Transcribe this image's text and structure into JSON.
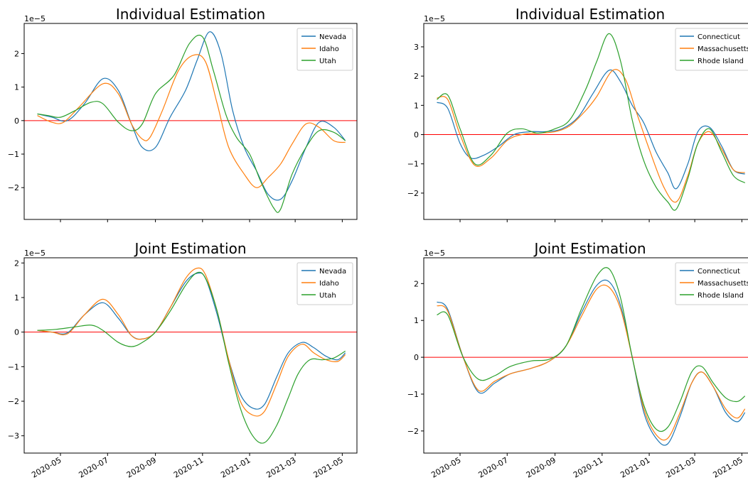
{
  "chart_data": [
    {
      "type": "line",
      "title": "Individual Estimation",
      "offset_text": "1e−5",
      "x_ticks": [
        "2020-05",
        "2020-07",
        "2020-09",
        "2020-11",
        "2021-01",
        "2021-03",
        "2021-05"
      ],
      "y_ticks": [
        "−2",
        "−1",
        "0",
        "1",
        "2"
      ],
      "ylim": [
        -2.95,
        2.9
      ],
      "xlim": [
        "2020-03-15",
        "2021-05-20"
      ],
      "show_xtick_labels": false,
      "reference_line": {
        "y": 0,
        "color": "#ff0000"
      },
      "legend": {
        "placement": "top-right"
      },
      "series": [
        {
          "name": "Nevada",
          "color": "#1f77b4",
          "x": [
            "2020-04-01",
            "2020-04-20",
            "2020-05-10",
            "2020-06-01",
            "2020-06-25",
            "2020-07-15",
            "2020-08-01",
            "2020-08-15",
            "2020-09-01",
            "2020-09-20",
            "2020-10-10",
            "2020-10-25",
            "2020-11-10",
            "2020-11-25",
            "2020-12-10",
            "2020-12-25",
            "2021-01-10",
            "2021-01-25",
            "2021-02-10",
            "2021-02-25",
            "2021-03-15",
            "2021-04-01",
            "2021-04-20",
            "2021-05-05"
          ],
          "values": [
            0.2,
            0.1,
            0.0,
            0.5,
            1.25,
            0.9,
            -0.1,
            -0.8,
            -0.8,
            0.1,
            0.9,
            1.8,
            2.65,
            2.0,
            0.3,
            -0.8,
            -1.5,
            -2.2,
            -2.35,
            -1.8,
            -0.8,
            -0.05,
            -0.2,
            -0.6
          ]
        },
        {
          "name": "Idaho",
          "color": "#ff7f0e",
          "x": [
            "2020-04-01",
            "2020-04-20",
            "2020-05-05",
            "2020-05-25",
            "2020-06-25",
            "2020-07-15",
            "2020-08-01",
            "2020-08-15",
            "2020-08-25",
            "2020-09-10",
            "2020-10-01",
            "2020-10-20",
            "2020-11-05",
            "2020-11-20",
            "2020-12-05",
            "2020-12-25",
            "2021-01-10",
            "2021-01-25",
            "2021-02-10",
            "2021-02-25",
            "2021-03-15",
            "2021-04-01",
            "2021-04-20",
            "2021-05-05"
          ],
          "values": [
            0.15,
            -0.05,
            -0.05,
            0.4,
            1.1,
            0.8,
            -0.1,
            -0.55,
            -0.5,
            0.3,
            1.5,
            1.95,
            1.75,
            0.5,
            -0.8,
            -1.6,
            -2.0,
            -1.7,
            -1.3,
            -0.7,
            -0.1,
            -0.2,
            -0.6,
            -0.65
          ]
        },
        {
          "name": "Utah",
          "color": "#2ca02c",
          "x": [
            "2020-04-01",
            "2020-04-15",
            "2020-05-01",
            "2020-05-20",
            "2020-06-10",
            "2020-06-25",
            "2020-07-15",
            "2020-08-01",
            "2020-08-15",
            "2020-09-01",
            "2020-09-25",
            "2020-10-15",
            "2020-11-01",
            "2020-11-15",
            "2020-12-01",
            "2020-12-15",
            "2021-01-01",
            "2021-01-15",
            "2021-02-01",
            "2021-02-10",
            "2021-02-25",
            "2021-03-15",
            "2021-04-01",
            "2021-04-20",
            "2021-05-05"
          ],
          "values": [
            0.2,
            0.15,
            0.1,
            0.3,
            0.55,
            0.5,
            -0.05,
            -0.3,
            -0.1,
            0.8,
            1.35,
            2.3,
            2.5,
            1.5,
            0.2,
            -0.5,
            -1.0,
            -1.8,
            -2.6,
            -2.65,
            -1.6,
            -0.8,
            -0.3,
            -0.35,
            -0.6
          ]
        }
      ]
    },
    {
      "type": "line",
      "title": "Individual Estimation",
      "offset_text": "1e−5",
      "x_ticks": [
        "2020-05",
        "2020-07",
        "2020-09",
        "2020-11",
        "2021-01",
        "2021-03",
        "2021-05"
      ],
      "y_ticks": [
        "−2",
        "−1",
        "0",
        "1",
        "2",
        "3"
      ],
      "ylim": [
        -2.9,
        3.8
      ],
      "xlim": [
        "2020-03-15",
        "2021-05-20"
      ],
      "show_xtick_labels": false,
      "reference_line": {
        "y": 0,
        "color": "#ff0000"
      },
      "legend": {
        "placement": "top-right"
      },
      "series": [
        {
          "name": "Connecticut",
          "color": "#1f77b4",
          "x": [
            "2020-04-01",
            "2020-04-15",
            "2020-05-01",
            "2020-05-15",
            "2020-06-01",
            "2020-06-20",
            "2020-07-10",
            "2020-08-01",
            "2020-08-20",
            "2020-09-10",
            "2020-10-01",
            "2020-10-20",
            "2020-11-10",
            "2020-11-25",
            "2020-12-10",
            "2020-12-25",
            "2021-01-10",
            "2021-01-25",
            "2021-02-05",
            "2021-02-20",
            "2021-03-05",
            "2021-03-20",
            "2021-04-05",
            "2021-04-20",
            "2021-05-05"
          ],
          "values": [
            1.1,
            0.9,
            -0.3,
            -0.8,
            -0.7,
            -0.4,
            0.0,
            0.1,
            0.1,
            0.2,
            0.6,
            1.4,
            2.2,
            1.8,
            1.0,
            0.4,
            -0.6,
            -1.3,
            -1.85,
            -1.0,
            0.1,
            0.25,
            -0.4,
            -1.2,
            -1.35
          ]
        },
        {
          "name": "Massachusetts",
          "color": "#ff7f0e",
          "x": [
            "2020-04-01",
            "2020-04-15",
            "2020-05-01",
            "2020-05-20",
            "2020-06-10",
            "2020-07-01",
            "2020-07-20",
            "2020-08-10",
            "2020-09-01",
            "2020-09-20",
            "2020-10-10",
            "2020-10-25",
            "2020-11-15",
            "2020-12-01",
            "2020-12-15",
            "2021-01-01",
            "2021-01-20",
            "2021-02-05",
            "2021-02-20",
            "2021-03-05",
            "2021-03-20",
            "2021-04-05",
            "2021-04-20",
            "2021-05-05"
          ],
          "values": [
            1.25,
            1.2,
            0.0,
            -1.05,
            -0.8,
            -0.2,
            0.0,
            0.05,
            0.1,
            0.3,
            0.8,
            1.3,
            2.2,
            1.9,
            0.8,
            -0.5,
            -1.8,
            -2.3,
            -1.4,
            -0.3,
            0.1,
            -0.5,
            -1.2,
            -1.3
          ]
        },
        {
          "name": "Rhode Island",
          "color": "#2ca02c",
          "x": [
            "2020-04-01",
            "2020-04-15",
            "2020-05-01",
            "2020-05-20",
            "2020-06-10",
            "2020-07-01",
            "2020-07-20",
            "2020-08-10",
            "2020-09-01",
            "2020-09-20",
            "2020-10-10",
            "2020-10-25",
            "2020-11-10",
            "2020-11-25",
            "2020-12-10",
            "2020-12-25",
            "2021-01-10",
            "2021-01-25",
            "2021-02-05",
            "2021-02-20",
            "2021-03-05",
            "2021-03-20",
            "2021-04-05",
            "2021-04-20",
            "2021-05-05"
          ],
          "values": [
            1.2,
            1.35,
            0.2,
            -1.0,
            -0.7,
            0.05,
            0.2,
            0.05,
            0.2,
            0.5,
            1.5,
            2.5,
            3.45,
            2.5,
            0.5,
            -0.9,
            -1.8,
            -2.3,
            -2.55,
            -1.5,
            -0.3,
            0.2,
            -0.6,
            -1.4,
            -1.65
          ]
        }
      ]
    },
    {
      "type": "line",
      "title": "Joint Estimation",
      "offset_text": "1e−5",
      "x_ticks": [
        "2020-05",
        "2020-07",
        "2020-09",
        "2020-11",
        "2021-01",
        "2021-03",
        "2021-05"
      ],
      "y_ticks": [
        "−3",
        "−2",
        "−1",
        "0",
        "1",
        "2"
      ],
      "ylim": [
        -3.5,
        2.15
      ],
      "xlim": [
        "2020-03-15",
        "2021-05-20"
      ],
      "show_xtick_labels": true,
      "reference_line": {
        "y": 0,
        "color": "#ff0000"
      },
      "legend": {
        "placement": "top-right"
      },
      "series": [
        {
          "name": "Nevada",
          "color": "#1f77b4",
          "x": [
            "2020-04-01",
            "2020-04-20",
            "2020-05-10",
            "2020-06-01",
            "2020-06-25",
            "2020-07-15",
            "2020-08-01",
            "2020-08-15",
            "2020-09-01",
            "2020-09-20",
            "2020-10-10",
            "2020-10-25",
            "2020-11-05",
            "2020-11-20",
            "2020-12-05",
            "2020-12-20",
            "2021-01-05",
            "2021-01-20",
            "2021-02-05",
            "2021-02-20",
            "2021-03-10",
            "2021-03-25",
            "2021-04-10",
            "2021-04-25",
            "2021-05-05"
          ],
          "values": [
            0.05,
            0.0,
            -0.02,
            0.5,
            0.85,
            0.4,
            -0.1,
            -0.2,
            0.0,
            0.7,
            1.45,
            1.7,
            1.55,
            0.5,
            -0.8,
            -1.8,
            -2.2,
            -2.1,
            -1.3,
            -0.6,
            -0.3,
            -0.45,
            -0.7,
            -0.8,
            -0.6
          ]
        },
        {
          "name": "Idaho",
          "color": "#ff7f0e",
          "x": [
            "2020-04-01",
            "2020-04-20",
            "2020-05-10",
            "2020-06-01",
            "2020-06-25",
            "2020-07-15",
            "2020-08-01",
            "2020-08-15",
            "2020-09-01",
            "2020-09-20",
            "2020-10-10",
            "2020-10-25",
            "2020-11-05",
            "2020-11-20",
            "2020-12-05",
            "2020-12-20",
            "2021-01-05",
            "2021-01-20",
            "2021-02-05",
            "2021-02-20",
            "2021-03-10",
            "2021-03-25",
            "2021-04-10",
            "2021-04-25",
            "2021-05-05"
          ],
          "values": [
            0.05,
            0.0,
            -0.05,
            0.5,
            0.95,
            0.5,
            -0.1,
            -0.2,
            0.0,
            0.7,
            1.55,
            1.85,
            1.65,
            0.6,
            -0.8,
            -2.0,
            -2.4,
            -2.3,
            -1.5,
            -0.7,
            -0.35,
            -0.6,
            -0.8,
            -0.85,
            -0.65
          ]
        },
        {
          "name": "Utah",
          "color": "#2ca02c",
          "x": [
            "2020-04-01",
            "2020-04-25",
            "2020-05-20",
            "2020-06-10",
            "2020-06-25",
            "2020-07-15",
            "2020-08-01",
            "2020-08-15",
            "2020-09-01",
            "2020-09-20",
            "2020-10-10",
            "2020-10-25",
            "2020-11-05",
            "2020-11-20",
            "2020-12-05",
            "2020-12-20",
            "2021-01-05",
            "2021-01-20",
            "2021-02-05",
            "2021-02-20",
            "2021-03-05",
            "2021-03-20",
            "2021-04-05",
            "2021-04-20",
            "2021-05-05"
          ],
          "values": [
            0.05,
            0.08,
            0.15,
            0.2,
            0.05,
            -0.3,
            -0.42,
            -0.3,
            0.0,
            0.6,
            1.35,
            1.72,
            1.55,
            0.6,
            -0.9,
            -2.2,
            -3.0,
            -3.2,
            -2.7,
            -1.9,
            -1.2,
            -0.8,
            -0.8,
            -0.75,
            -0.55
          ]
        }
      ]
    },
    {
      "type": "line",
      "title": "Joint Estimation",
      "offset_text": "1e−5",
      "x_ticks": [
        "2020-05",
        "2020-07",
        "2020-09",
        "2020-11",
        "2021-01",
        "2021-03",
        "2021-05"
      ],
      "y_ticks": [
        "−2",
        "−1",
        "0",
        "1",
        "2"
      ],
      "ylim": [
        -2.6,
        2.7
      ],
      "xlim": [
        "2020-03-15",
        "2021-05-20"
      ],
      "show_xtick_labels": true,
      "reference_line": {
        "y": 0,
        "color": "#ff0000"
      },
      "legend": {
        "placement": "top-right"
      },
      "series": [
        {
          "name": "Connecticut",
          "color": "#1f77b4",
          "x": [
            "2020-04-01",
            "2020-04-15",
            "2020-05-05",
            "2020-05-25",
            "2020-06-15",
            "2020-07-05",
            "2020-08-01",
            "2020-08-25",
            "2020-09-15",
            "2020-10-05",
            "2020-10-25",
            "2020-11-10",
            "2020-11-25",
            "2020-12-10",
            "2020-12-25",
            "2021-01-10",
            "2021-01-25",
            "2021-02-10",
            "2021-02-25",
            "2021-03-10",
            "2021-03-25",
            "2021-04-10",
            "2021-04-25",
            "2021-05-05"
          ],
          "values": [
            1.5,
            1.3,
            0.0,
            -0.95,
            -0.7,
            -0.45,
            -0.3,
            -0.1,
            0.3,
            1.2,
            1.95,
            2.05,
            1.4,
            0.0,
            -1.5,
            -2.2,
            -2.35,
            -1.6,
            -0.7,
            -0.4,
            -0.8,
            -1.5,
            -1.75,
            -1.5
          ]
        },
        {
          "name": "Massachusetts",
          "color": "#ff7f0e",
          "x": [
            "2020-04-01",
            "2020-04-15",
            "2020-05-05",
            "2020-05-25",
            "2020-06-15",
            "2020-07-05",
            "2020-08-01",
            "2020-08-25",
            "2020-09-15",
            "2020-10-05",
            "2020-10-25",
            "2020-11-10",
            "2020-11-25",
            "2020-12-10",
            "2020-12-25",
            "2021-01-10",
            "2021-01-25",
            "2021-02-10",
            "2021-02-25",
            "2021-03-10",
            "2021-03-25",
            "2021-04-10",
            "2021-04-25",
            "2021-05-05"
          ],
          "values": [
            1.4,
            1.25,
            0.0,
            -0.9,
            -0.65,
            -0.45,
            -0.3,
            -0.1,
            0.3,
            1.1,
            1.85,
            1.9,
            1.3,
            0.0,
            -1.4,
            -2.1,
            -2.2,
            -1.5,
            -0.7,
            -0.4,
            -0.8,
            -1.4,
            -1.65,
            -1.4
          ]
        },
        {
          "name": "Rhode Island",
          "color": "#2ca02c",
          "x": [
            "2020-04-01",
            "2020-04-15",
            "2020-05-05",
            "2020-05-25",
            "2020-06-15",
            "2020-07-05",
            "2020-08-01",
            "2020-08-25",
            "2020-09-15",
            "2020-10-05",
            "2020-10-25",
            "2020-11-10",
            "2020-11-25",
            "2020-12-10",
            "2020-12-25",
            "2021-01-10",
            "2021-01-25",
            "2021-02-10",
            "2021-02-25",
            "2021-03-10",
            "2021-03-25",
            "2021-04-10",
            "2021-04-25",
            "2021-05-05"
          ],
          "values": [
            1.15,
            1.15,
            0.0,
            -0.6,
            -0.5,
            -0.25,
            -0.1,
            -0.05,
            0.3,
            1.3,
            2.2,
            2.4,
            1.6,
            0.0,
            -1.3,
            -1.95,
            -1.9,
            -1.2,
            -0.4,
            -0.25,
            -0.7,
            -1.1,
            -1.2,
            -1.05
          ]
        }
      ]
    }
  ]
}
